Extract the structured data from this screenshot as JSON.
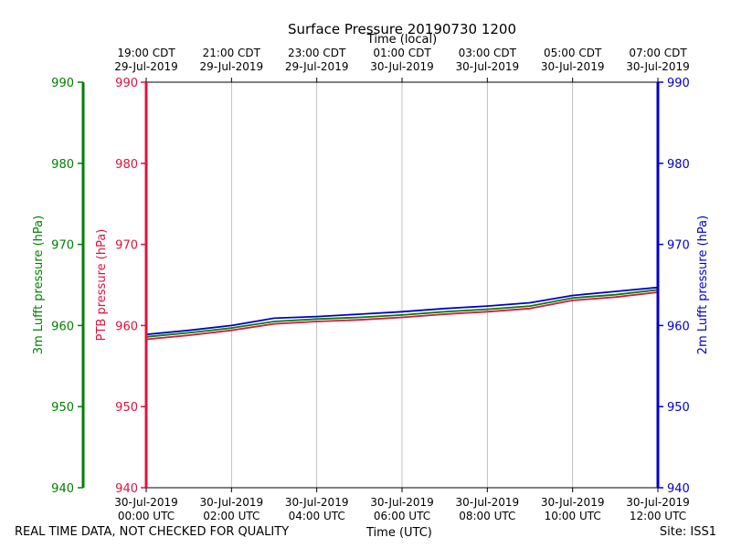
{
  "chart_data": {
    "type": "line",
    "title": "Surface Pressure 20190730 1200",
    "top_axis_label": "Time (local)",
    "xlabel": "Time (UTC)",
    "left_outer_ylabel": "3m Lufft pressure (hPa)",
    "left_inner_ylabel": "PTB pressure (hPa)",
    "right_ylabel": "2m Lufft pressure (hPa)",
    "ylim": [
      940,
      990
    ],
    "yticks": [
      940,
      950,
      960,
      970,
      980,
      990
    ],
    "xlim_hours": [
      0,
      12
    ],
    "xticks_hours": [
      0,
      2,
      4,
      6,
      8,
      10,
      12
    ],
    "xtick_labels_utc": [
      [
        "30-Jul-2019",
        "00:00 UTC"
      ],
      [
        "30-Jul-2019",
        "02:00 UTC"
      ],
      [
        "30-Jul-2019",
        "04:00 UTC"
      ],
      [
        "30-Jul-2019",
        "06:00 UTC"
      ],
      [
        "30-Jul-2019",
        "08:00 UTC"
      ],
      [
        "30-Jul-2019",
        "10:00 UTC"
      ],
      [
        "30-Jul-2019",
        "12:00 UTC"
      ]
    ],
    "xtick_labels_local": [
      [
        "19:00 CDT",
        "29-Jul-2019"
      ],
      [
        "21:00 CDT",
        "29-Jul-2019"
      ],
      [
        "23:00 CDT",
        "29-Jul-2019"
      ],
      [
        "01:00 CDT",
        "30-Jul-2019"
      ],
      [
        "03:00 CDT",
        "30-Jul-2019"
      ],
      [
        "05:00 CDT",
        "30-Jul-2019"
      ],
      [
        "07:00 CDT",
        "30-Jul-2019"
      ]
    ],
    "grid": "vertical",
    "x": [
      0,
      1,
      2,
      3,
      4,
      5,
      6,
      7,
      8,
      9,
      10,
      11,
      12
    ],
    "series": [
      {
        "name": "PTB pressure",
        "color": "#dc143c",
        "axis": "left_inner",
        "values": [
          958.3,
          958.8,
          959.4,
          960.2,
          960.5,
          960.7,
          961.0,
          961.4,
          961.7,
          962.1,
          963.1,
          963.5,
          964.1
        ]
      },
      {
        "name": "3m Lufft pressure",
        "color": "#008000",
        "axis": "left_outer",
        "values": [
          958.6,
          959.1,
          959.7,
          960.5,
          960.8,
          961.0,
          961.3,
          961.7,
          962.0,
          962.4,
          963.4,
          963.8,
          964.4
        ]
      },
      {
        "name": "2m Lufft pressure",
        "color": "#0000cd",
        "axis": "right",
        "values": [
          958.9,
          959.4,
          960.0,
          960.9,
          961.1,
          961.4,
          961.7,
          962.1,
          962.4,
          962.8,
          963.7,
          964.2,
          964.7
        ]
      }
    ],
    "axis_colors": {
      "left_outer": "#008000",
      "left_inner": "#dc143c",
      "right": "#0000cd"
    }
  },
  "footer": {
    "left": "REAL TIME DATA, NOT CHECKED FOR QUALITY",
    "center": "Time (UTC)",
    "right": "Site: ISS1"
  }
}
